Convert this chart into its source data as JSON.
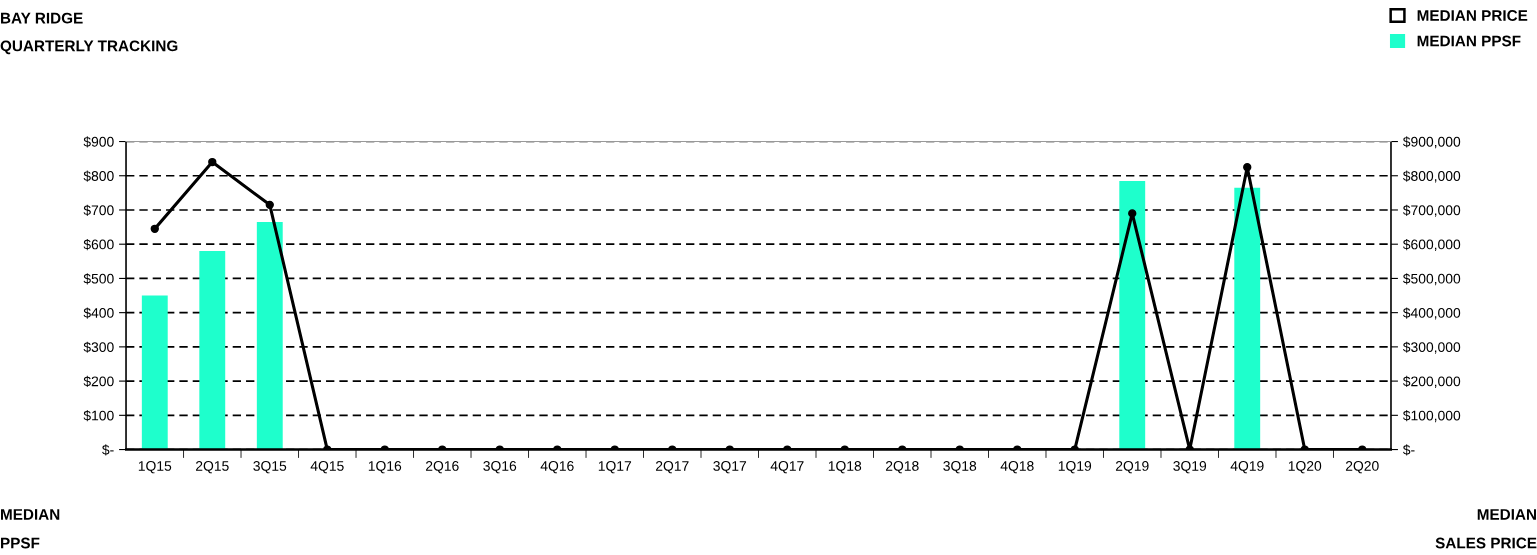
{
  "chart_data": {
    "type": "bar",
    "title": "BAY RIDGE",
    "subtitle": "QUARTERLY TRACKING",
    "ylabel": "MEDIAN\nPPSF",
    "y2label": "MEDIAN\nSALES PRICE",
    "categories": [
      "1Q15",
      "2Q15",
      "3Q15",
      "4Q15",
      "1Q16",
      "2Q16",
      "3Q16",
      "4Q16",
      "1Q17",
      "2Q17",
      "3Q17",
      "4Q17",
      "1Q18",
      "2Q18",
      "3Q18",
      "4Q18",
      "1Q19",
      "2Q19",
      "3Q19",
      "4Q19",
      "1Q20",
      "2Q20"
    ],
    "series": [
      {
        "name": "MEDIAN PRICE",
        "type": "line",
        "axis": "y2",
        "color": "#000000",
        "marker": "circle",
        "values": [
          645000,
          840000,
          715000,
          0,
          0,
          0,
          0,
          0,
          0,
          0,
          0,
          0,
          0,
          0,
          0,
          0,
          0,
          690000,
          0,
          825000,
          0,
          0
        ]
      },
      {
        "name": "MEDIAN PPSF",
        "color": "#1effcc",
        "values": [
          450,
          580,
          665,
          0,
          0,
          0,
          0,
          0,
          0,
          0,
          0,
          0,
          0,
          0,
          0,
          0,
          0,
          785,
          0,
          765,
          0,
          0
        ]
      }
    ],
    "ylim": [
      0,
      900
    ],
    "yticks": [
      {
        "value": 0,
        "label": "$-"
      },
      {
        "value": 100,
        "label": "$100"
      },
      {
        "value": 200,
        "label": "$200"
      },
      {
        "value": 300,
        "label": "$300"
      },
      {
        "value": 400,
        "label": "$400"
      },
      {
        "value": 500,
        "label": "$500"
      },
      {
        "value": 600,
        "label": "$600"
      },
      {
        "value": 700,
        "label": "$700"
      },
      {
        "value": 800,
        "label": "$800"
      },
      {
        "value": 900,
        "label": "$900"
      }
    ],
    "y2lim": [
      0,
      900000
    ],
    "y2ticks": [
      {
        "value": 0,
        "label": "$-"
      },
      {
        "value": 100000,
        "label": "$100,000"
      },
      {
        "value": 200000,
        "label": "$200,000"
      },
      {
        "value": 300000,
        "label": "$300,000"
      },
      {
        "value": 400000,
        "label": "$400,000"
      },
      {
        "value": 500000,
        "label": "$500,000"
      },
      {
        "value": 600000,
        "label": "$600,000"
      },
      {
        "value": 700000,
        "label": "$700,000"
      },
      {
        "value": 800000,
        "label": "$800,000"
      },
      {
        "value": 900000,
        "label": "$900,000"
      }
    ],
    "grid": "y",
    "legend": "top right"
  }
}
